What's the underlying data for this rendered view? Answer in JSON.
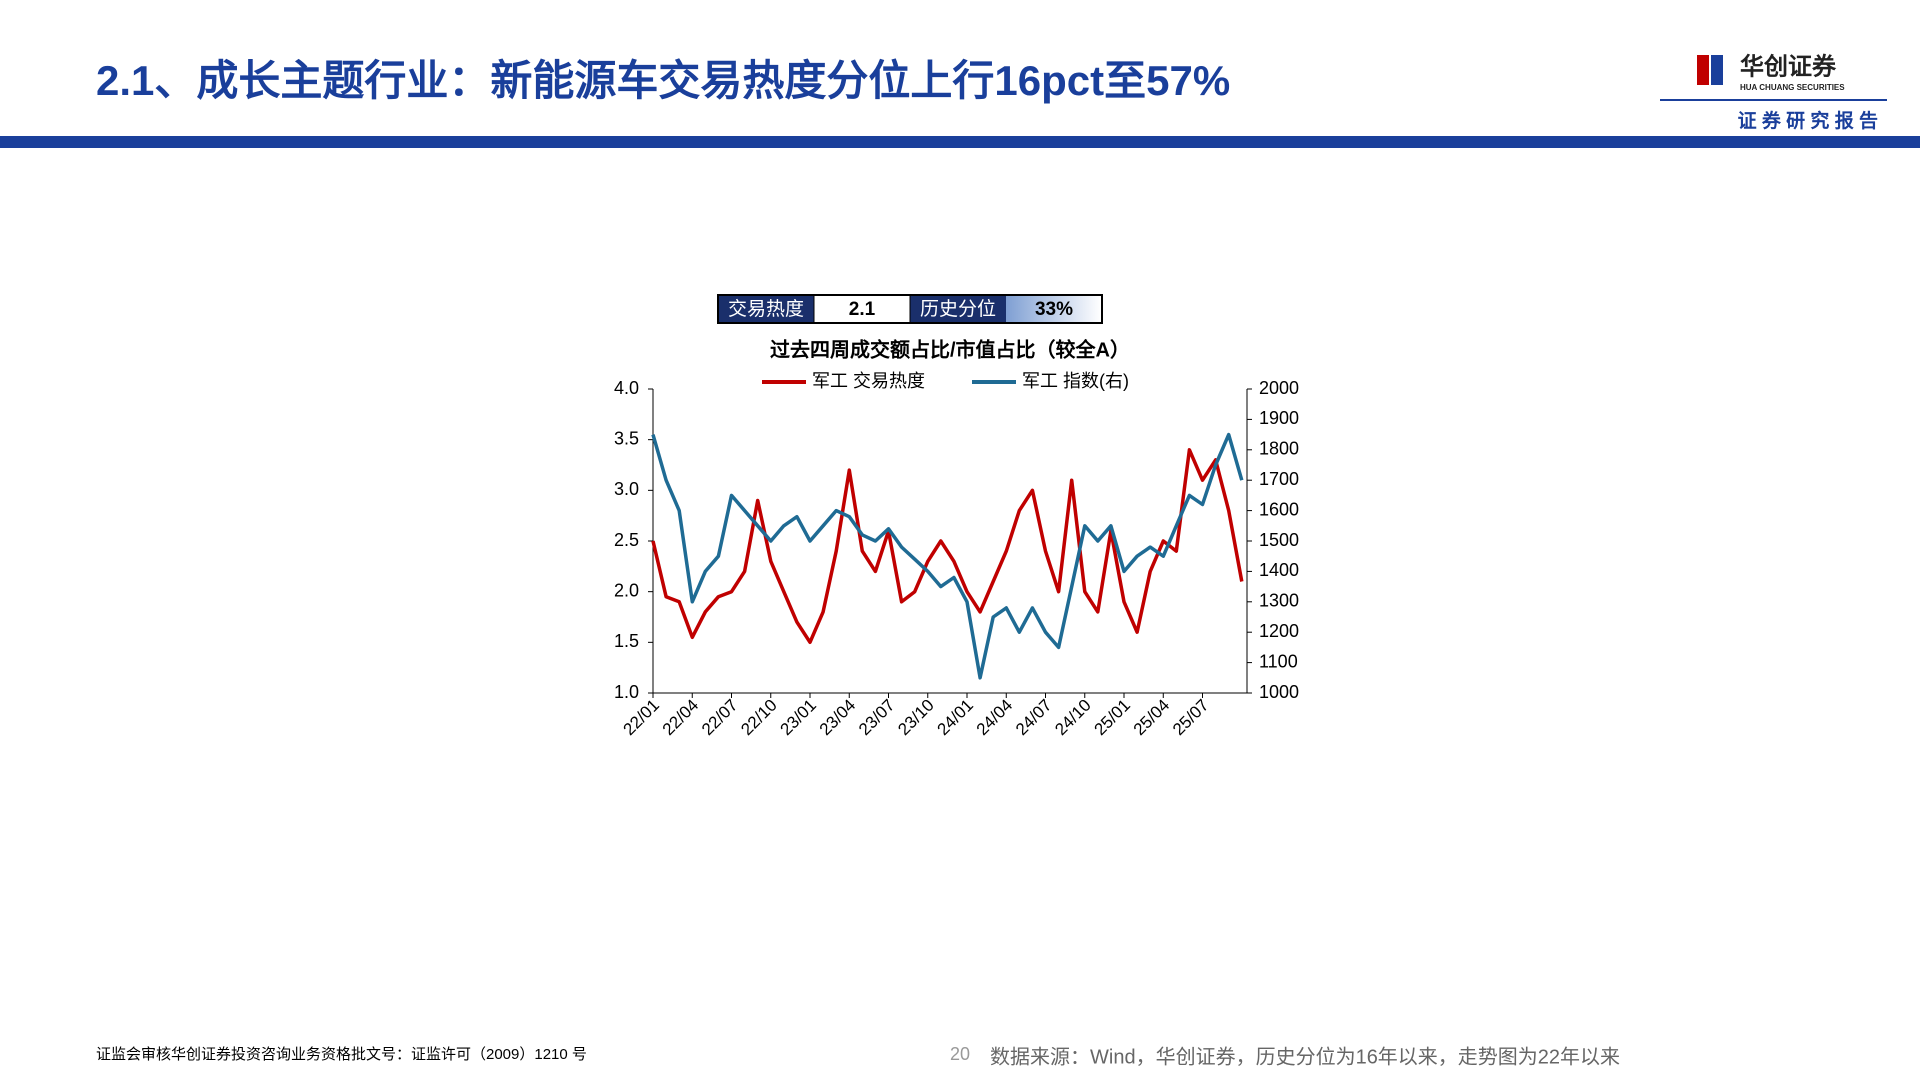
{
  "header": {
    "title": "2.1、成长主题行业：新能源车交易热度分位上行16pct至57%",
    "logo_name": "华创证券",
    "logo_sub": "HUA CHUANG SECURITIES",
    "tagline": "证 券 研 究 报 告"
  },
  "summary": {
    "cells": [
      "交易热度",
      "2.1",
      "历史分位",
      "33%"
    ]
  },
  "chart_data": {
    "type": "line",
    "title": "过去四周成交额占比/市值占比（较全A）",
    "categories": [
      "22/01",
      null,
      null,
      "22/04",
      null,
      null,
      "22/07",
      null,
      null,
      "22/10",
      null,
      null,
      "23/01",
      null,
      null,
      "23/04",
      null,
      null,
      "23/07",
      null,
      null,
      "23/10",
      null,
      null,
      "24/01",
      null,
      null,
      "24/04",
      null,
      null,
      "24/07",
      null,
      null,
      "24/10",
      null,
      null,
      "25/01",
      null,
      null,
      "25/04",
      null,
      null,
      "25/07",
      null,
      null,
      null
    ],
    "series": [
      {
        "name": "军工 交易热度",
        "color": "#c00000",
        "values": [
          2.5,
          1.95,
          1.9,
          1.55,
          1.8,
          1.95,
          2.0,
          2.2,
          2.9,
          2.3,
          2.0,
          1.7,
          1.5,
          1.8,
          2.4,
          3.2,
          2.4,
          2.2,
          2.6,
          1.9,
          2.0,
          2.3,
          2.5,
          2.3,
          2.0,
          1.8,
          2.1,
          2.4,
          2.8,
          3.0,
          2.4,
          2.0,
          3.1,
          2.0,
          1.8,
          2.6,
          1.9,
          1.6,
          2.2,
          2.5,
          2.4,
          3.4,
          3.1,
          3.3,
          2.8,
          2.1
        ]
      },
      {
        "name": "军工 指数(右)",
        "color": "#1f6b94",
        "axis": "y2",
        "values": [
          1850,
          1700,
          1600,
          1300,
          1400,
          1450,
          1650,
          1600,
          1550,
          1500,
          1550,
          1580,
          1500,
          1550,
          1600,
          1580,
          1520,
          1500,
          1540,
          1480,
          1440,
          1400,
          1350,
          1380,
          1300,
          1050,
          1250,
          1280,
          1200,
          1280,
          1200,
          1150,
          1350,
          1550,
          1500,
          1550,
          1400,
          1450,
          1480,
          1450,
          1550,
          1650,
          1620,
          1750,
          1850,
          1700
        ]
      }
    ],
    "ylim": [
      1,
      4
    ],
    "yticks": [
      {
        "value": 1,
        "label": "1.0"
      },
      {
        "value": 1.5,
        "label": "1.5"
      },
      {
        "value": 2,
        "label": "2.0"
      },
      {
        "value": 2.5,
        "label": "2.5"
      },
      {
        "value": 3,
        "label": "3.0"
      },
      {
        "value": 3.5,
        "label": "3.5"
      },
      {
        "value": 4,
        "label": "4.0"
      }
    ],
    "y2lim": [
      1000,
      2000
    ],
    "y2ticks": [
      1000,
      1100,
      1200,
      1300,
      1400,
      1500,
      1600,
      1700,
      1800,
      1900,
      2000
    ],
    "grid": false
  },
  "footer": {
    "license": "证监会审核华创证券投资咨询业务资格批文号：证监许可（2009）1210 号",
    "page": "20",
    "source": "数据来源：Wind，华创证券，历史分位为16年以来，走势图为22年以来"
  }
}
